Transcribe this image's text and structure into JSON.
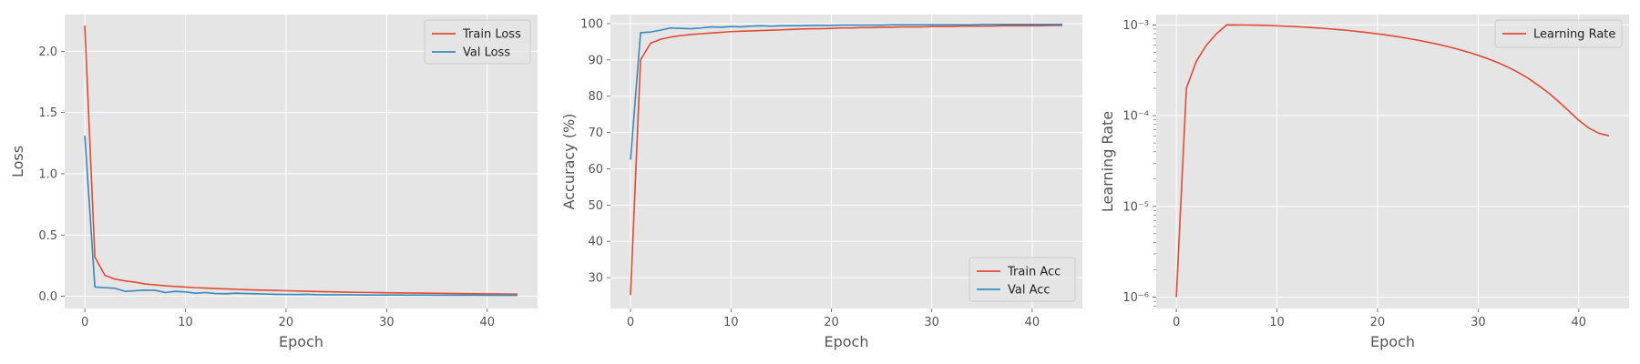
{
  "chart_data": [
    {
      "type": "line",
      "title": "",
      "xlabel": "Epoch",
      "ylabel": "Loss",
      "xlim": [
        -2,
        45
      ],
      "ylim": [
        -0.1,
        2.3
      ],
      "xticks": [
        0,
        10,
        20,
        30,
        40
      ],
      "xtick_labels": [
        "0",
        "10",
        "20",
        "30",
        "40"
      ],
      "yticks": [
        0.0,
        0.5,
        1.0,
        1.5,
        2.0
      ],
      "ytick_labels": [
        "0.0",
        "0.5",
        "1.0",
        "1.5",
        "2.0"
      ],
      "yscale": "linear",
      "grid": true,
      "legend_position": "upper-right",
      "x": [
        0,
        1,
        2,
        3,
        4,
        5,
        6,
        7,
        8,
        9,
        10,
        11,
        12,
        13,
        14,
        15,
        16,
        17,
        18,
        19,
        20,
        21,
        22,
        23,
        24,
        25,
        26,
        27,
        28,
        29,
        30,
        31,
        32,
        33,
        34,
        35,
        36,
        37,
        38,
        39,
        40,
        41,
        42,
        43
      ],
      "series": [
        {
          "name": "Train Loss",
          "color": "#E24A33",
          "values": [
            2.21,
            0.32,
            0.17,
            0.14,
            0.125,
            0.115,
            0.1,
            0.093,
            0.085,
            0.08,
            0.075,
            0.07,
            0.067,
            0.063,
            0.06,
            0.057,
            0.054,
            0.051,
            0.049,
            0.047,
            0.045,
            0.043,
            0.041,
            0.039,
            0.037,
            0.035,
            0.033,
            0.032,
            0.031,
            0.03,
            0.029,
            0.028,
            0.027,
            0.026,
            0.025,
            0.024,
            0.023,
            0.022,
            0.021,
            0.02,
            0.019,
            0.019,
            0.018,
            0.018
          ]
        },
        {
          "name": "Val Loss",
          "color": "#348ABD",
          "values": [
            1.31,
            0.075,
            0.07,
            0.065,
            0.04,
            0.045,
            0.05,
            0.048,
            0.03,
            0.04,
            0.035,
            0.025,
            0.03,
            0.022,
            0.02,
            0.025,
            0.022,
            0.02,
            0.018,
            0.016,
            0.015,
            0.014,
            0.016,
            0.013,
            0.012,
            0.012,
            0.012,
            0.011,
            0.01,
            0.01,
            0.01,
            0.01,
            0.009,
            0.009,
            0.009,
            0.008,
            0.008,
            0.008,
            0.008,
            0.008,
            0.007,
            0.007,
            0.007,
            0.007
          ]
        }
      ]
    },
    {
      "type": "line",
      "title": "",
      "xlabel": "Epoch",
      "ylabel": "Accuracy (%)",
      "xlim": [
        -2,
        45
      ],
      "ylim": [
        21.5,
        102.5
      ],
      "xticks": [
        0,
        10,
        20,
        30,
        40
      ],
      "xtick_labels": [
        "0",
        "10",
        "20",
        "30",
        "40"
      ],
      "yticks": [
        30,
        40,
        50,
        60,
        70,
        80,
        90,
        100
      ],
      "ytick_labels": [
        "30",
        "40",
        "50",
        "60",
        "70",
        "80",
        "90",
        "100"
      ],
      "yscale": "linear",
      "grid": true,
      "legend_position": "lower-right",
      "x": [
        0,
        1,
        2,
        3,
        4,
        5,
        6,
        7,
        8,
        9,
        10,
        11,
        12,
        13,
        14,
        15,
        16,
        17,
        18,
        19,
        20,
        21,
        22,
        23,
        24,
        25,
        26,
        27,
        28,
        29,
        30,
        31,
        32,
        33,
        34,
        35,
        36,
        37,
        38,
        39,
        40,
        41,
        42,
        43
      ],
      "series": [
        {
          "name": "Train Acc",
          "color": "#E24A33",
          "values": [
            25.2,
            90.0,
            94.6,
            95.7,
            96.3,
            96.7,
            97.0,
            97.2,
            97.4,
            97.6,
            97.8,
            97.9,
            98.0,
            98.1,
            98.2,
            98.3,
            98.4,
            98.5,
            98.6,
            98.6,
            98.7,
            98.8,
            98.8,
            98.9,
            98.9,
            99.0,
            99.0,
            99.1,
            99.1,
            99.1,
            99.2,
            99.2,
            99.2,
            99.3,
            99.3,
            99.3,
            99.3,
            99.4,
            99.4,
            99.4,
            99.4,
            99.4,
            99.5,
            99.5
          ]
        },
        {
          "name": "Val Acc",
          "color": "#348ABD",
          "values": [
            62.5,
            97.5,
            97.7,
            98.2,
            98.8,
            98.7,
            98.6,
            98.8,
            99.1,
            99.0,
            99.2,
            99.1,
            99.3,
            99.4,
            99.3,
            99.4,
            99.4,
            99.4,
            99.5,
            99.5,
            99.5,
            99.6,
            99.6,
            99.6,
            99.6,
            99.6,
            99.7,
            99.7,
            99.7,
            99.7,
            99.7,
            99.7,
            99.7,
            99.7,
            99.7,
            99.8,
            99.8,
            99.8,
            99.8,
            99.8,
            99.8,
            99.8,
            99.8,
            99.8
          ]
        }
      ]
    },
    {
      "type": "line",
      "title": "",
      "xlabel": "Epoch",
      "ylabel": "Learning Rate",
      "xlim": [
        -2,
        45
      ],
      "ylim": [
        7.5e-07,
        0.0013
      ],
      "xticks": [
        0,
        10,
        20,
        30,
        40
      ],
      "xtick_labels": [
        "0",
        "10",
        "20",
        "30",
        "40"
      ],
      "yticks": [
        1e-06,
        1e-05,
        0.0001,
        0.001
      ],
      "ytick_labels": [
        "10⁻⁶",
        "10⁻⁵",
        "10⁻⁴",
        "10⁻³"
      ],
      "yscale": "log",
      "grid": true,
      "legend_position": "upper-right",
      "x": [
        0,
        1,
        2,
        3,
        4,
        5,
        6,
        7,
        8,
        9,
        10,
        11,
        12,
        13,
        14,
        15,
        16,
        17,
        18,
        19,
        20,
        21,
        22,
        23,
        24,
        25,
        26,
        27,
        28,
        29,
        30,
        31,
        32,
        33,
        34,
        35,
        36,
        37,
        38,
        39,
        40,
        41,
        42,
        43
      ],
      "series": [
        {
          "name": "Learning Rate",
          "color": "#E24A33",
          "values": [
            1e-06,
            0.0002,
            0.0004,
            0.0006,
            0.0008,
            0.001,
            0.000999,
            0.000997,
            0.000992,
            0.000986,
            0.000978,
            0.000968,
            0.000956,
            0.000942,
            0.000927,
            0.000909,
            0.00089,
            0.00087,
            0.000847,
            0.000823,
            0.000797,
            0.00077,
            0.000741,
            0.000711,
            0.000679,
            0.000646,
            0.000611,
            0.000576,
            0.000539,
            0.000501,
            0.000462,
            0.000423,
            0.000382,
            0.000341,
            0.000299,
            0.000257,
            0.000215,
            0.000178,
            0.000143,
            0.000113,
            8.9e-05,
            7.3e-05,
            6.4e-05,
            6e-05
          ]
        }
      ]
    }
  ]
}
